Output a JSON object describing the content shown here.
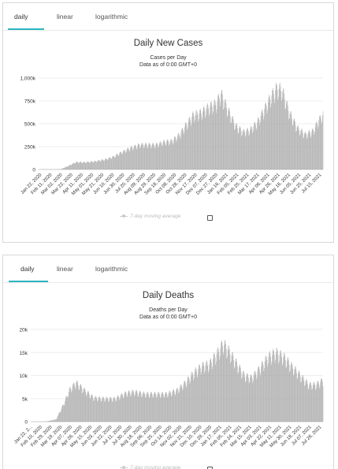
{
  "tabs": [
    {
      "label": "daily",
      "active": true
    },
    {
      "label": "linear",
      "active": false
    },
    {
      "label": "logarithmic",
      "active": false
    }
  ],
  "accent_color": "#2bb5c2",
  "bar_color": "#a9a9a9",
  "legend": {
    "label": "7-day moving average"
  },
  "charts": [
    {
      "id": "cases",
      "title": "Daily New Cases",
      "subtitle1": "Cases per Day",
      "subtitle2": "Data as of 0:00 GMT+0"
    },
    {
      "id": "deaths",
      "title": "Daily Deaths",
      "subtitle1": "Deaths per Day",
      "subtitle2": "Data as of 0:00 GMT+0"
    }
  ],
  "chart_data": [
    {
      "type": "bar",
      "title": "Daily New Cases",
      "subtitle": "Cases per Day",
      "note": "Data as of 0:00 GMT+0",
      "ylim": [
        0,
        1000000
      ],
      "y_ticks": [
        {
          "value": 0,
          "label": "0"
        },
        {
          "value": 250000,
          "label": "250k"
        },
        {
          "value": 500000,
          "label": "500k"
        },
        {
          "value": 750000,
          "label": "750k"
        },
        {
          "value": 1000000,
          "label": "1,000k"
        }
      ],
      "x_range": [
        "2020-01-22",
        "2021-07-24"
      ],
      "x_tick_labels": [
        "Jan 22, 2020",
        "Feb 11, 2020",
        "Mar 02, 2020",
        "Mar 22, 2020",
        "Apr 11, 2020",
        "May 01, 2020",
        "May 21, 2020",
        "Jun 10, 2020",
        "Jun 30, 2020",
        "Jul 20, 2020",
        "Aug 09, 2020",
        "Aug 29, 2020",
        "Sep 18, 2020",
        "Oct 08, 2020",
        "Oct 28, 2020",
        "Nov 17, 2020",
        "Dec 07, 2020",
        "Dec 27, 2020",
        "Jan 16, 2021",
        "Feb 05, 2021",
        "Feb 25, 2021",
        "Mar 17, 2021",
        "Apr 06, 2021",
        "Apr 26, 2021",
        "May 16, 2021",
        "Jun 05, 2021",
        "Jun 25, 2021",
        "Jul 15, 2021"
      ],
      "grid": true,
      "legend": {
        "position": "bottom-center",
        "entries": [
          "7-day moving average"
        ]
      },
      "series": [
        {
          "name": "daily",
          "color": "#a9a9a9",
          "points": [
            [
              "2020-01-22",
              0
            ],
            [
              "2020-02-05",
              3000
            ],
            [
              "2020-02-20",
              1500
            ],
            [
              "2020-03-05",
              4000
            ],
            [
              "2020-03-20",
              40000
            ],
            [
              "2020-04-03",
              80000
            ],
            [
              "2020-04-20",
              78000
            ],
            [
              "2020-05-10",
              88000
            ],
            [
              "2020-05-30",
              110000
            ],
            [
              "2020-06-15",
              140000
            ],
            [
              "2020-07-01",
              190000
            ],
            [
              "2020-07-20",
              240000
            ],
            [
              "2020-08-05",
              270000
            ],
            [
              "2020-08-20",
              270000
            ],
            [
              "2020-09-05",
              270000
            ],
            [
              "2020-09-20",
              300000
            ],
            [
              "2020-10-05",
              310000
            ],
            [
              "2020-10-20",
              380000
            ],
            [
              "2020-11-01",
              480000
            ],
            [
              "2020-11-15",
              590000
            ],
            [
              "2020-11-30",
              620000
            ],
            [
              "2020-12-15",
              680000
            ],
            [
              "2020-12-30",
              720000
            ],
            [
              "2021-01-08",
              830000
            ],
            [
              "2021-01-20",
              670000
            ],
            [
              "2021-02-05",
              480000
            ],
            [
              "2021-02-20",
              410000
            ],
            [
              "2021-03-05",
              430000
            ],
            [
              "2021-03-20",
              520000
            ],
            [
              "2021-04-01",
              650000
            ],
            [
              "2021-04-15",
              800000
            ],
            [
              "2021-04-26",
              890000
            ],
            [
              "2021-05-06",
              870000
            ],
            [
              "2021-05-20",
              620000
            ],
            [
              "2021-06-05",
              450000
            ],
            [
              "2021-06-20",
              380000
            ],
            [
              "2021-07-05",
              420000
            ],
            [
              "2021-07-15",
              530000
            ],
            [
              "2021-07-24",
              600000
            ]
          ]
        }
      ]
    },
    {
      "type": "bar",
      "title": "Daily Deaths",
      "subtitle": "Deaths per Day",
      "note": "Data as of 0:00 GMT+0",
      "ylim": [
        0,
        20000
      ],
      "y_ticks": [
        {
          "value": 0,
          "label": "0"
        },
        {
          "value": 5000,
          "label": "5k"
        },
        {
          "value": 10000,
          "label": "10k"
        },
        {
          "value": 15000,
          "label": "15k"
        },
        {
          "value": 20000,
          "label": "20k"
        }
      ],
      "x_range": [
        "2020-01-22",
        "2021-07-28"
      ],
      "x_tick_labels": [
        "Jan 22, 2...",
        "Feb 10, 2020",
        "Feb 29, 2020",
        "Mar 19, 2020",
        "Apr 07, 2020",
        "Apr 26, 2020",
        "May 15, 2020",
        "Jun 03, 2020",
        "Jun 22, 2020",
        "Jul 11, 2020",
        "Jul 30, 2020",
        "Aug 18, 2020",
        "Sep 06, 2020",
        "Sep 25, 2020",
        "Oct 14, 2020",
        "Nov 02, 2020",
        "Nov 21, 2020",
        "Dec 10, 2020",
        "Dec 29, 2020",
        "Jan 17, 2021",
        "Feb 05, 2021",
        "Feb 24, 2021",
        "Mar 15, 2021",
        "Apr 03, 2021",
        "Apr 22, 2021",
        "May 11, 2021",
        "May 30, 2021",
        "Jun 18, 2021",
        "Jul 07, 2021",
        "Jul 26, 2021"
      ],
      "grid": true,
      "legend": {
        "position": "bottom-center",
        "entries": [
          "7-day moving average"
        ]
      },
      "series": [
        {
          "name": "daily",
          "color": "#a9a9a9",
          "points": [
            [
              "2020-01-22",
              0
            ],
            [
              "2020-02-20",
              50
            ],
            [
              "2020-03-10",
              500
            ],
            [
              "2020-03-25",
              4000
            ],
            [
              "2020-04-05",
              7000
            ],
            [
              "2020-04-17",
              8500
            ],
            [
              "2020-05-01",
              7000
            ],
            [
              "2020-05-20",
              5200
            ],
            [
              "2020-06-10",
              5000
            ],
            [
              "2020-06-30",
              5000
            ],
            [
              "2020-07-20",
              6200
            ],
            [
              "2020-08-05",
              6500
            ],
            [
              "2020-08-25",
              6000
            ],
            [
              "2020-09-15",
              6000
            ],
            [
              "2020-10-05",
              6000
            ],
            [
              "2020-10-25",
              6800
            ],
            [
              "2020-11-10",
              8500
            ],
            [
              "2020-11-25",
              10500
            ],
            [
              "2020-12-10",
              12000
            ],
            [
              "2020-12-25",
              12500
            ],
            [
              "2021-01-10",
              15000
            ],
            [
              "2021-01-20",
              17000
            ],
            [
              "2021-01-30",
              15500
            ],
            [
              "2021-02-15",
              12500
            ],
            [
              "2021-03-01",
              10000
            ],
            [
              "2021-03-15",
              9500
            ],
            [
              "2021-03-30",
              11500
            ],
            [
              "2021-04-15",
              14000
            ],
            [
              "2021-04-30",
              15000
            ],
            [
              "2021-05-15",
              14000
            ],
            [
              "2021-05-30",
              12000
            ],
            [
              "2021-06-15",
              10000
            ],
            [
              "2021-07-01",
              8000
            ],
            [
              "2021-07-15",
              8000
            ],
            [
              "2021-07-28",
              9000
            ]
          ]
        }
      ]
    }
  ]
}
